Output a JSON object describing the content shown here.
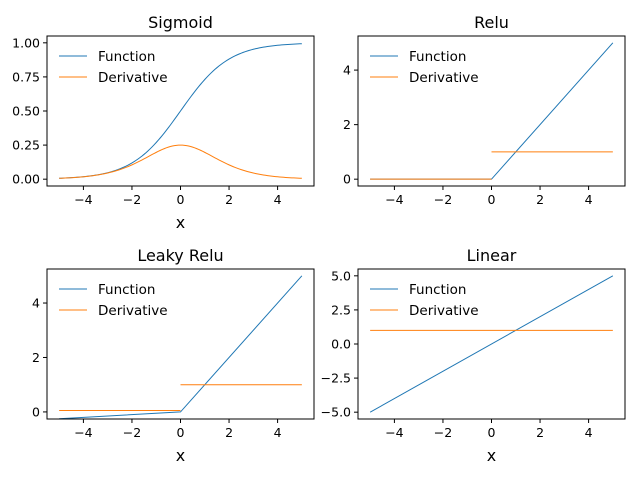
{
  "colors": {
    "function": "#1f77b4",
    "derivative": "#ff7f0e"
  },
  "chart_data": [
    {
      "type": "line",
      "title": "Sigmoid",
      "xlabel": "x",
      "ylabel": "",
      "xlim": [
        -5.5,
        5.5
      ],
      "ylim": [
        -0.05,
        1.05
      ],
      "xticks": [
        -4,
        -2,
        0,
        2,
        4
      ],
      "yticks": [
        0,
        0.25,
        0.5,
        0.75,
        1.0
      ],
      "ytick_labels": [
        "0.00",
        "0.25",
        "0.50",
        "0.75",
        "1.00"
      ],
      "legend": "top-left",
      "x": [
        -5,
        -4,
        -3,
        -2,
        -1,
        0,
        1,
        2,
        3,
        4,
        5
      ],
      "series": [
        {
          "name": "Function",
          "values": [
            0.007,
            0.018,
            0.047,
            0.119,
            0.269,
            0.5,
            0.731,
            0.881,
            0.953,
            0.982,
            0.993
          ]
        },
        {
          "name": "Derivative",
          "values": [
            0.007,
            0.018,
            0.045,
            0.105,
            0.197,
            0.25,
            0.197,
            0.105,
            0.045,
            0.018,
            0.007
          ]
        }
      ]
    },
    {
      "type": "line",
      "title": "Relu",
      "xlabel": "",
      "ylabel": "",
      "xlim": [
        -5.5,
        5.5
      ],
      "ylim": [
        -0.25,
        5.25
      ],
      "xticks": [
        -4,
        -2,
        0,
        2,
        4
      ],
      "yticks": [
        0,
        2,
        4
      ],
      "ytick_labels": [
        "0",
        "2",
        "4"
      ],
      "legend": "top-left",
      "series": [
        {
          "name": "Function",
          "x": [
            -5,
            0,
            5
          ],
          "values": [
            0,
            0,
            5
          ]
        },
        {
          "name": "Derivative",
          "segments": [
            {
              "x": [
                -5,
                0
              ],
              "values": [
                0,
                0
              ]
            },
            {
              "x": [
                0,
                5
              ],
              "values": [
                1,
                1
              ]
            }
          ]
        }
      ]
    },
    {
      "type": "line",
      "title": "Leaky Relu",
      "xlabel": "x",
      "ylabel": "",
      "xlim": [
        -5.5,
        5.5
      ],
      "ylim": [
        -0.26,
        5.25
      ],
      "xticks": [
        -4,
        -2,
        0,
        2,
        4
      ],
      "yticks": [
        0,
        2,
        4
      ],
      "ytick_labels": [
        "0",
        "2",
        "4"
      ],
      "legend": "top-left",
      "series": [
        {
          "name": "Function",
          "x": [
            -5,
            0,
            5
          ],
          "values": [
            -0.25,
            0,
            5
          ]
        },
        {
          "name": "Derivative",
          "segments": [
            {
              "x": [
                -5,
                0
              ],
              "values": [
                0.05,
                0.05
              ]
            },
            {
              "x": [
                0,
                5
              ],
              "values": [
                1,
                1
              ]
            }
          ]
        }
      ]
    },
    {
      "type": "line",
      "title": "Linear",
      "xlabel": "x",
      "ylabel": "",
      "xlim": [
        -5.5,
        5.5
      ],
      "ylim": [
        -5.5,
        5.5
      ],
      "xticks": [
        -4,
        -2,
        0,
        2,
        4
      ],
      "yticks": [
        -5,
        -2.5,
        0,
        2.5,
        5
      ],
      "ytick_labels": [
        "−5.0",
        "−2.5",
        "0.0",
        "2.5",
        "5.0"
      ],
      "legend": "top-left",
      "series": [
        {
          "name": "Function",
          "x": [
            -5,
            5
          ],
          "values": [
            -5,
            5
          ]
        },
        {
          "name": "Derivative",
          "x": [
            -5,
            5
          ],
          "values": [
            1,
            1
          ]
        }
      ]
    }
  ]
}
